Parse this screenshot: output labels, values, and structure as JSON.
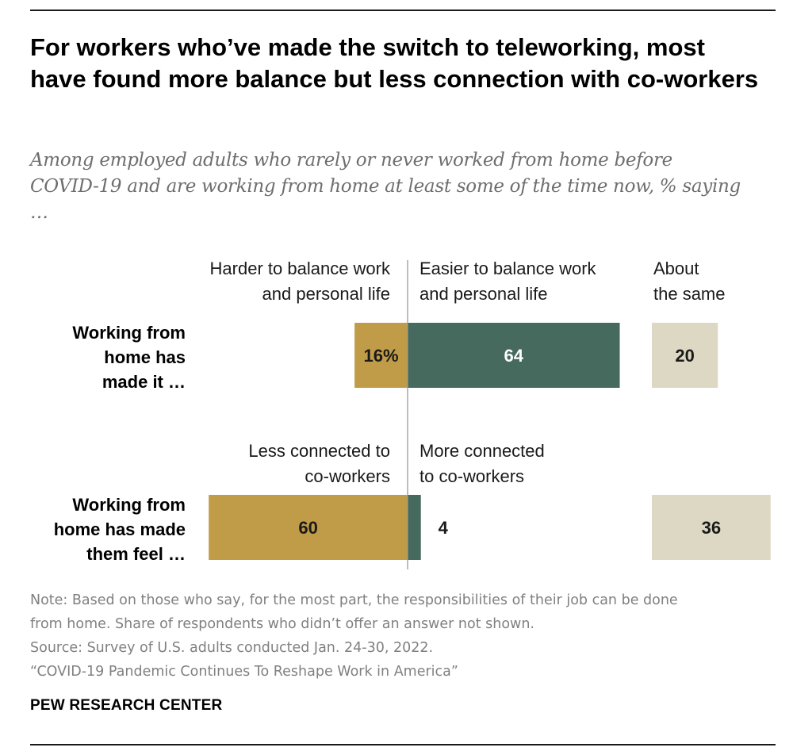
{
  "title": "For workers who’ve made the switch to teleworking, most have found more balance but less connection with co-workers",
  "subtitle": "Among employed adults who rarely or never worked from home before COVID-19 and are working from home at least some of the time now, % saying …",
  "colors": {
    "harder_less": "#c19c48",
    "easier_more": "#466a5e",
    "same": "#dcd8c3",
    "divider": "#9a9a9a"
  },
  "chart_data": {
    "type": "bar",
    "orientation": "horizontal-diverging",
    "rows": [
      {
        "label": "Working from home has made it …",
        "label_lines": [
          "Working from",
          "home has",
          "made it …"
        ],
        "negative": {
          "header_lines": [
            "Harder to balance work",
            "and personal life"
          ],
          "value": 16,
          "label": "16%"
        },
        "positive": {
          "header_lines": [
            "Easier to balance work",
            "and personal life"
          ],
          "value": 64,
          "label": "64"
        },
        "neutral": {
          "header_lines": [
            "About",
            "the same"
          ],
          "value": 20,
          "label": "20"
        }
      },
      {
        "label": "Working from home has made them feel …",
        "label_lines": [
          "Working from",
          "home has made",
          "them feel …"
        ],
        "negative": {
          "header_lines": [
            "Less connected to",
            "co-workers"
          ],
          "value": 60,
          "label": "60"
        },
        "positive": {
          "header_lines": [
            "More connected",
            "to co-workers"
          ],
          "value": 4,
          "label": "4"
        },
        "neutral": {
          "header_lines": [],
          "value": 36,
          "label": "36"
        }
      }
    ]
  },
  "notes": [
    "Note: Based on those who say, for the most part, the responsibilities of their job can be done",
    "from home. Share of respondents who didn’t offer an answer not shown.",
    "Source: Survey of U.S. adults conducted Jan. 24-30, 2022.",
    "“COVID-19 Pandemic Continues To Reshape Work in America”"
  ],
  "brand": "PEW RESEARCH CENTER"
}
